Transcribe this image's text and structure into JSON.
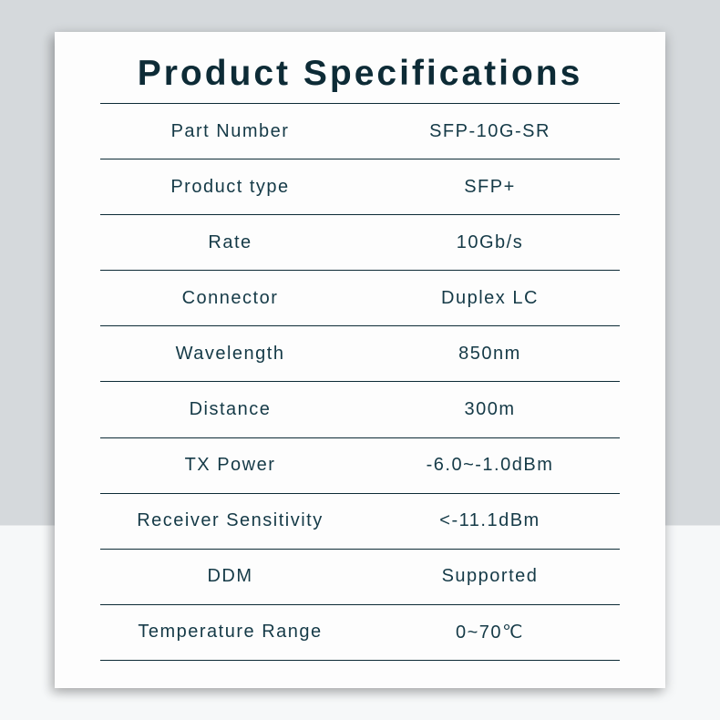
{
  "title": "Product Specifications",
  "title_color": "#0d2b36",
  "title_fontsize": 39,
  "text_color": "#153a47",
  "row_fontsize": 20,
  "divider_color": "#0d2b36",
  "card_background": "#fdfdfd",
  "page_background_top": "#d5d9dc",
  "page_background_bottom": "#f6f8f9",
  "rows": [
    {
      "label": "Part Number",
      "value": "SFP-10G-SR"
    },
    {
      "label": "Product type",
      "value": "SFP+"
    },
    {
      "label": "Rate",
      "value": "10Gb/s"
    },
    {
      "label": "Connector",
      "value": "Duplex LC"
    },
    {
      "label": "Wavelength",
      "value": "850nm"
    },
    {
      "label": "Distance",
      "value": "300m"
    },
    {
      "label": "TX Power",
      "value": "-6.0~-1.0dBm"
    },
    {
      "label": "Receiver Sensitivity",
      "value": "<-11.1dBm"
    },
    {
      "label": "DDM",
      "value": "Supported"
    },
    {
      "label": "Temperature Range",
      "value": "0~70℃"
    }
  ]
}
